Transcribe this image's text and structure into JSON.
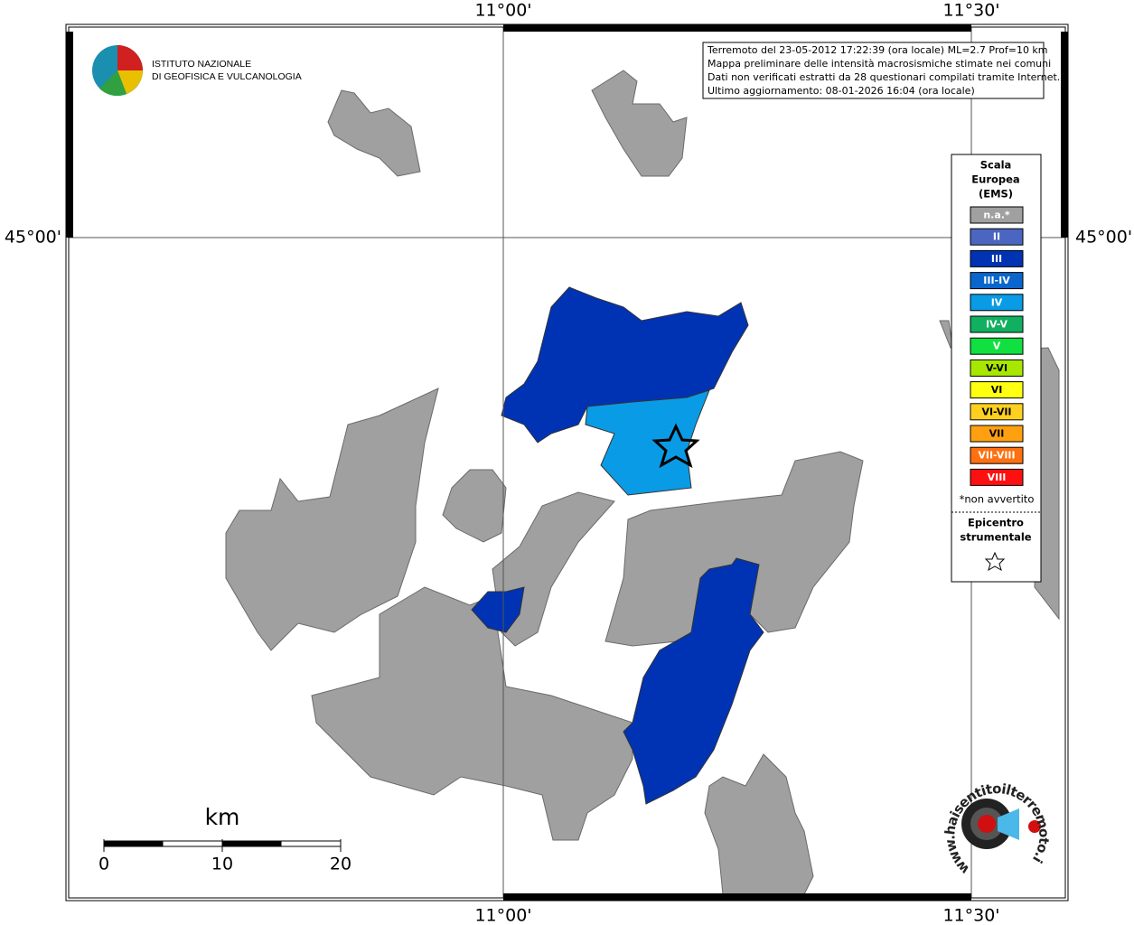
{
  "map": {
    "lon_labels": [
      "11°00'",
      "11°30'"
    ],
    "lat_label": "45°00'",
    "info_box": [
      "Terremoto del 23-05-2012 17:22:39 (ora locale) ML=2.7 Prof=10 km",
      "Mappa preliminare delle intensità macrosismiche stimate nei comuni",
      "Dati non verificati estratti da 28 questionari compilati tramite Internet.",
      "Ultimo aggiornamento: 08-01-2026 16:04 (ora locale)"
    ],
    "logo_ingv": [
      "ISTITUTO NAZIONALE",
      "DI GEOFISICA E VULCANOLOGIA"
    ],
    "logo_hsit": "www.haisentitoilterremoto.it",
    "legend": {
      "title": [
        "Scala",
        "Europea",
        "(EMS)"
      ],
      "items": [
        {
          "label": "n.a.*",
          "color": "#a0a0a0"
        },
        {
          "label": "II",
          "color": "#4a66c0"
        },
        {
          "label": "III",
          "color": "#0033b4"
        },
        {
          "label": "III-IV",
          "color": "#0a66cc"
        },
        {
          "label": "IV",
          "color": "#0a9be6"
        },
        {
          "label": "IV-V",
          "color": "#10b060"
        },
        {
          "label": "V",
          "color": "#10e040"
        },
        {
          "label": "V-VI",
          "color": "#a8e800"
        },
        {
          "label": "VI",
          "color": "#ffff10"
        },
        {
          "label": "VI-VII",
          "color": "#ffd020"
        },
        {
          "label": "VII",
          "color": "#ffa010"
        },
        {
          "label": "VII-VIII",
          "color": "#ff7010"
        },
        {
          "label": "VIII",
          "color": "#ff1010"
        }
      ],
      "footnote": "*non avvertito",
      "epicenter": [
        "Epicentro",
        "strumentale"
      ]
    },
    "scale_bar": {
      "unit": "km",
      "ticks": [
        0,
        10,
        20
      ],
      "range": [
        0,
        20
      ]
    }
  }
}
